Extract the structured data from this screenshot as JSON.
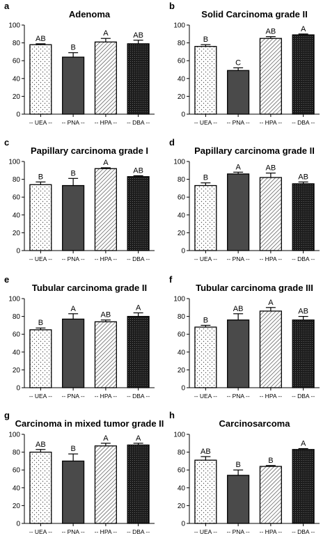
{
  "colors": {
    "bar_outline": "#000000",
    "UEA_fill": "dots",
    "PNA_fill": "#4a4a4a",
    "HPA_fill": "diagonal-lines",
    "DBA_fill": "#1c1c1c"
  },
  "chart_data": [
    {
      "type": "bar",
      "panel": "a",
      "title": "Adenoma",
      "categories": [
        "-- UEA --",
        "-- PNA --",
        "-- HPA --",
        "-- DBA --"
      ],
      "values": [
        78,
        64,
        81,
        79
      ],
      "errors": [
        1,
        5,
        4,
        4
      ],
      "significance": [
        "AB",
        "B",
        "A",
        "AB"
      ],
      "ylim": [
        0,
        100
      ],
      "yticks": [
        "0",
        "20",
        "40",
        "60",
        "80",
        "100"
      ]
    },
    {
      "type": "bar",
      "panel": "b",
      "title": "Solid Carcinoma grade II",
      "categories": [
        "-- UEA --",
        "-- PNA --",
        "-- HPA --",
        "-- DBA --"
      ],
      "values": [
        76,
        49,
        85,
        89
      ],
      "errors": [
        2,
        3,
        2,
        1
      ],
      "significance": [
        "B",
        "C",
        "AB",
        "A"
      ],
      "ylim": [
        0,
        100
      ],
      "yticks": [
        "0",
        "20",
        "40",
        "60",
        "80",
        "100"
      ]
    },
    {
      "type": "bar",
      "panel": "c",
      "title": "Papillary carcinoma grade I",
      "categories": [
        "-- UEA --",
        "-- PNA --",
        "-- HPA --",
        "-- DBA --"
      ],
      "values": [
        74,
        73,
        92,
        83
      ],
      "errors": [
        3,
        8,
        1,
        1
      ],
      "significance": [
        "B",
        "B",
        "A",
        "AB"
      ],
      "ylim": [
        0,
        100
      ],
      "yticks": [
        "0",
        "20",
        "40",
        "60",
        "80",
        "100"
      ]
    },
    {
      "type": "bar",
      "panel": "d",
      "title": "Papillary carcinoma grade II",
      "categories": [
        "-- UEA --",
        "-- PNA --",
        "-- HPA --",
        "-- DBA --"
      ],
      "values": [
        73,
        86,
        82,
        75
      ],
      "errors": [
        3,
        2,
        5,
        2
      ],
      "significance": [
        "B",
        "A",
        "AB",
        "AB"
      ],
      "ylim": [
        0,
        100
      ],
      "yticks": [
        "0",
        "20",
        "40",
        "60",
        "80",
        "100"
      ]
    },
    {
      "type": "bar",
      "panel": "e",
      "title": "Tubular carcinoma grade II",
      "categories": [
        "-- UEA --",
        "-- PNA --",
        "-- HPA --",
        "-- DBA --"
      ],
      "values": [
        65,
        77,
        74,
        80
      ],
      "errors": [
        2,
        6,
        2,
        4
      ],
      "significance": [
        "B",
        "A",
        "AB",
        "A"
      ],
      "ylim": [
        0,
        100
      ],
      "yticks": [
        "0",
        "20",
        "40",
        "60",
        "80",
        "100"
      ]
    },
    {
      "type": "bar",
      "panel": "f",
      "title": "Tubular carcinoma grade III",
      "categories": [
        "-- UEA --",
        "-- PNA --",
        "-- HPA --",
        "-- DBA --"
      ],
      "values": [
        68,
        76,
        86,
        76
      ],
      "errors": [
        2,
        7,
        4,
        4
      ],
      "significance": [
        "B",
        "AB",
        "A",
        "AB"
      ],
      "ylim": [
        0,
        100
      ],
      "yticks": [
        "0",
        "20",
        "40",
        "60",
        "80",
        "100"
      ]
    },
    {
      "type": "bar",
      "panel": "g",
      "title": "Carcinoma in mixed tumor grade II",
      "categories": [
        "-- UEA --",
        "-- PNA --",
        "-- HPA --",
        "-- DBA --"
      ],
      "values": [
        80,
        70,
        87,
        88
      ],
      "errors": [
        3,
        8,
        3,
        2
      ],
      "significance": [
        "AB",
        "B",
        "A",
        "A"
      ],
      "ylim": [
        0,
        100
      ],
      "yticks": [
        "0",
        "20",
        "40",
        "60",
        "80",
        "100"
      ]
    },
    {
      "type": "bar",
      "panel": "h",
      "title": "Carcinosarcoma",
      "categories": [
        "-- UEA --",
        "-- PNA --",
        "-- HPA --",
        "-- DBA --"
      ],
      "values": [
        71,
        54,
        64,
        83
      ],
      "errors": [
        4,
        6,
        1,
        1
      ],
      "significance": [
        "AB",
        "B",
        "B",
        "A"
      ],
      "ylim": [
        0,
        100
      ],
      "yticks": [
        "0",
        "20",
        "40",
        "60",
        "80",
        "100"
      ]
    }
  ]
}
